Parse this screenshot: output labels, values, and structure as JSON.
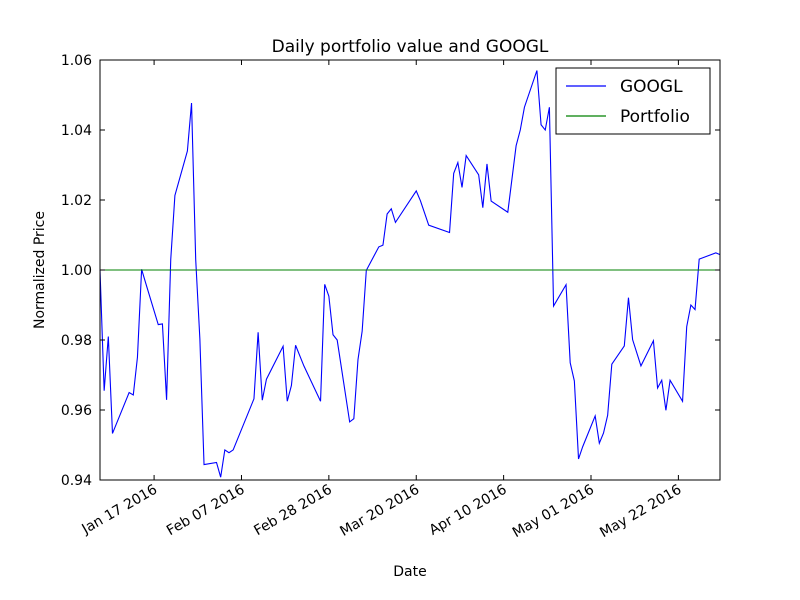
{
  "chart_data": {
    "type": "line",
    "title": "Daily portfolio value and GOOGL",
    "xlabel": "Date",
    "ylabel": "Normalized Price",
    "xlim": [
      "2016-01-04",
      "2016-06-01"
    ],
    "ylim": [
      0.94,
      1.06
    ],
    "y_ticks": [
      0.94,
      0.96,
      0.98,
      1.0,
      1.02,
      1.04,
      1.06
    ],
    "y_tick_labels": [
      "0.94",
      "0.96",
      "0.98",
      "1.00",
      "1.02",
      "1.04",
      "1.06"
    ],
    "x_ticks": [
      "2016-01-17",
      "2016-02-07",
      "2016-02-28",
      "2016-03-20",
      "2016-04-10",
      "2016-05-01",
      "2016-05-22"
    ],
    "x_tick_labels": [
      "Jan 17 2016",
      "Feb 07 2016",
      "Feb 28 2016",
      "Mar 20 2016",
      "Apr 10 2016",
      "May 01 2016",
      "May 22 2016"
    ],
    "grid": false,
    "legend": "top-right",
    "series": [
      {
        "name": "GOOGL",
        "color": "#0000ff",
        "points": [
          [
            "2016-01-04",
            1.0
          ],
          [
            "2016-01-05",
            0.9655
          ],
          [
            "2016-01-06",
            0.981
          ],
          [
            "2016-01-07",
            0.9533
          ],
          [
            "2016-01-11",
            0.965
          ],
          [
            "2016-01-12",
            0.9643
          ],
          [
            "2016-01-13",
            0.9751
          ],
          [
            "2016-01-14",
            1.0002
          ],
          [
            "2016-01-15",
            0.9962
          ],
          [
            "2016-01-18",
            0.9844
          ],
          [
            "2016-01-19",
            0.9846
          ],
          [
            "2016-01-20",
            0.9629
          ],
          [
            "2016-01-21",
            1.003
          ],
          [
            "2016-01-22",
            1.0213
          ],
          [
            "2016-01-25",
            1.034
          ],
          [
            "2016-01-26",
            1.0477
          ],
          [
            "2016-01-27",
            1.003
          ],
          [
            "2016-01-28",
            0.9803
          ],
          [
            "2016-01-29",
            0.9444
          ],
          [
            "2016-02-01",
            0.945
          ],
          [
            "2016-02-02",
            0.9408
          ],
          [
            "2016-02-03",
            0.9486
          ],
          [
            "2016-02-04",
            0.9478
          ],
          [
            "2016-02-05",
            0.9486
          ],
          [
            "2016-02-10",
            0.9632
          ],
          [
            "2016-02-11",
            0.9822
          ],
          [
            "2016-02-12",
            0.9628
          ],
          [
            "2016-02-13",
            0.9688
          ],
          [
            "2016-02-17",
            0.9782
          ],
          [
            "2016-02-18",
            0.9625
          ],
          [
            "2016-02-19",
            0.967
          ],
          [
            "2016-02-20",
            0.9785
          ],
          [
            "2016-02-22",
            0.9726
          ],
          [
            "2016-02-26",
            0.9625
          ],
          [
            "2016-02-27",
            0.9959
          ],
          [
            "2016-02-28",
            0.9925
          ],
          [
            "2016-02-29",
            0.9815
          ],
          [
            "2016-03-01",
            0.98
          ],
          [
            "2016-03-04",
            0.9566
          ],
          [
            "2016-03-05",
            0.9575
          ],
          [
            "2016-03-06",
            0.9744
          ],
          [
            "2016-03-07",
            0.9825
          ],
          [
            "2016-03-08",
            0.9999
          ],
          [
            "2016-03-11",
            1.0066
          ],
          [
            "2016-03-12",
            1.0071
          ],
          [
            "2016-03-13",
            1.016
          ],
          [
            "2016-03-14",
            1.0175
          ],
          [
            "2016-03-15",
            1.0136
          ],
          [
            "2016-03-20",
            1.0226
          ],
          [
            "2016-03-21",
            1.0198
          ],
          [
            "2016-03-23",
            1.0128
          ],
          [
            "2016-03-28",
            1.0107
          ],
          [
            "2016-03-29",
            1.0276
          ],
          [
            "2016-03-30",
            1.0307
          ],
          [
            "2016-03-31",
            1.0236
          ],
          [
            "2016-04-01",
            1.0327
          ],
          [
            "2016-04-04",
            1.0272
          ],
          [
            "2016-04-05",
            1.0178
          ],
          [
            "2016-04-06",
            1.0303
          ],
          [
            "2016-04-07",
            1.0197
          ],
          [
            "2016-04-11",
            1.0165
          ],
          [
            "2016-04-13",
            1.0355
          ],
          [
            "2016-04-14",
            1.04
          ],
          [
            "2016-04-15",
            1.0465
          ],
          [
            "2016-04-18",
            1.057
          ],
          [
            "2016-04-19",
            1.0415
          ],
          [
            "2016-04-20",
            1.04
          ],
          [
            "2016-04-21",
            1.0465
          ],
          [
            "2016-04-22",
            0.9897
          ],
          [
            "2016-04-25",
            0.9958
          ],
          [
            "2016-04-26",
            0.9735
          ],
          [
            "2016-04-27",
            0.9683
          ],
          [
            "2016-04-28",
            0.946
          ],
          [
            "2016-04-29",
            0.9495
          ],
          [
            "2016-05-02",
            0.9583
          ],
          [
            "2016-05-03",
            0.9505
          ],
          [
            "2016-05-04",
            0.9534
          ],
          [
            "2016-05-05",
            0.9585
          ],
          [
            "2016-05-06",
            0.9731
          ],
          [
            "2016-05-09",
            0.9783
          ],
          [
            "2016-05-10",
            0.9921
          ],
          [
            "2016-05-11",
            0.9801
          ],
          [
            "2016-05-13",
            0.9726
          ],
          [
            "2016-05-16",
            0.9798
          ],
          [
            "2016-05-17",
            0.9663
          ],
          [
            "2016-05-18",
            0.9685
          ],
          [
            "2016-05-19",
            0.9599
          ],
          [
            "2016-05-20",
            0.9685
          ],
          [
            "2016-05-23",
            0.9625
          ],
          [
            "2016-05-24",
            0.9838
          ],
          [
            "2016-05-25",
            0.99
          ],
          [
            "2016-05-26",
            0.9887
          ],
          [
            "2016-05-27",
            1.0031
          ],
          [
            "2016-05-31",
            1.0049
          ],
          [
            "2016-06-01",
            1.0044
          ]
        ]
      },
      {
        "name": "Portfolio",
        "color": "#008000",
        "points": [
          [
            "2016-01-04",
            1.0
          ],
          [
            "2016-06-01",
            1.0
          ]
        ]
      }
    ]
  }
}
